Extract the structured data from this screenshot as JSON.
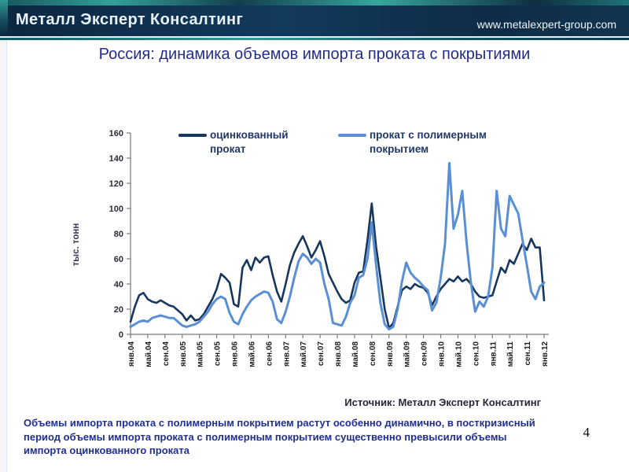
{
  "header": {
    "logo_text": "Металл Эксперт Консалтинг",
    "website": "www.metalexpert-group.com"
  },
  "title": "Россия: динамика объемов импорта проката с покрытиями",
  "source_note": "Источник: Металл Эксперт Консалтинг",
  "summary_text": "Объемы импорта проката с полимерным покрытием растут особенно динамично, в посткризисный период  объемы импорта проката с полимерным покрытием существенно превысили объемы импорта оцинкованного проката",
  "page_number": "4",
  "colors": {
    "accent_teal": "#2f9b93",
    "header_navy": "#123a5c",
    "title_blue": "#232c8a",
    "series_galvanized": "#17365d",
    "series_polymer": "#5b8fd3"
  },
  "chart_data": {
    "type": "line",
    "title": "Россия: динамика объемов импорта проката с покрытиями",
    "xlabel": "",
    "ylabel": "тыс. тонн",
    "ylim": [
      0,
      160
    ],
    "ytick_step": 20,
    "grid": false,
    "legend_position": "top-inside",
    "x_unit": "month",
    "x_range": [
      "янв.04",
      "янв.12"
    ],
    "x_tick_every": 4,
    "x_tick_labels": [
      "янв.04",
      "май.04",
      "сен.04",
      "янв.05",
      "май.05",
      "сен.05",
      "янв.06",
      "май.06",
      "сен.06",
      "янв.07",
      "май.07",
      "сен.07",
      "янв.08",
      "май.08",
      "сен.08",
      "янв.09",
      "май.09",
      "сен.09",
      "янв.10",
      "май.10",
      "сен.10",
      "янв.11",
      "май.11",
      "сен.11",
      "янв.12"
    ],
    "series": [
      {
        "name": "оцинкованный прокат",
        "color": "#17365d",
        "values": [
          10,
          22,
          31,
          33,
          28,
          26,
          25,
          27,
          25,
          23,
          22,
          19,
          16,
          11,
          15,
          11,
          12,
          16,
          22,
          28,
          36,
          48,
          45,
          41,
          24,
          22,
          53,
          59,
          51,
          61,
          57,
          61,
          62,
          47,
          34,
          26,
          40,
          55,
          65,
          72,
          78,
          70,
          61,
          67,
          74,
          62,
          48,
          41,
          34,
          28,
          25,
          27,
          41,
          49,
          50,
          75,
          104,
          70,
          45,
          20,
          5,
          9,
          22,
          35,
          38,
          36,
          40,
          38,
          37,
          33,
          23,
          30,
          36,
          40,
          44,
          42,
          46,
          42,
          44,
          40,
          34,
          30,
          29,
          30,
          31,
          42,
          53,
          49,
          59,
          56,
          64,
          72,
          67,
          76,
          69,
          69,
          27
        ]
      },
      {
        "name": "прокат с полимерным покрытием",
        "color": "#5b8fd3",
        "values": [
          6,
          8,
          10,
          11,
          10,
          13,
          14,
          15,
          14,
          13,
          13,
          10,
          7,
          6,
          7,
          8,
          10,
          14,
          18,
          24,
          28,
          30,
          28,
          17,
          10,
          8,
          16,
          22,
          27,
          30,
          32,
          34,
          33,
          26,
          12,
          9,
          18,
          30,
          45,
          58,
          64,
          61,
          56,
          60,
          57,
          40,
          28,
          9,
          8,
          7,
          14,
          25,
          31,
          45,
          47,
          60,
          89,
          55,
          25,
          8,
          4,
          6,
          20,
          42,
          57,
          49,
          45,
          42,
          38,
          35,
          19,
          25,
          45,
          72,
          136,
          84,
          95,
          114,
          73,
          41,
          18,
          26,
          22,
          30,
          53,
          114,
          84,
          78,
          110,
          103,
          96,
          75,
          55,
          34,
          28,
          38,
          41
        ]
      }
    ]
  }
}
